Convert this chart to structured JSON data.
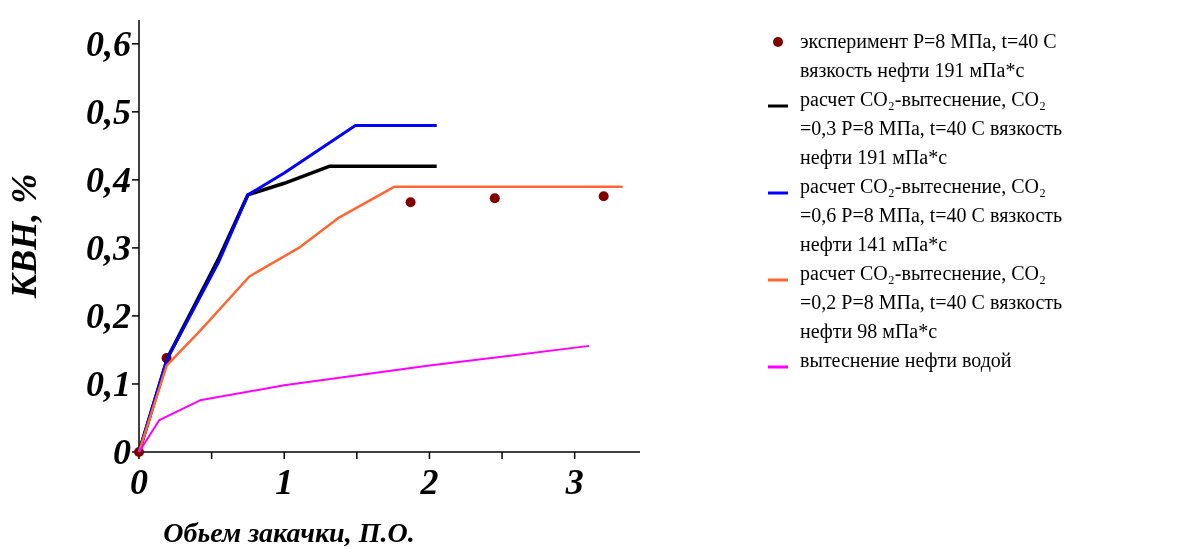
{
  "chart_data": {
    "type": "line",
    "xlabel": "Обьем закачки, П.О.",
    "ylabel": "КВН, %",
    "xlim": [
      0,
      3.45
    ],
    "ylim": [
      0,
      0.635
    ],
    "xticks": [
      0,
      {
        "value": 0.5,
        "label": null
      },
      1,
      {
        "value": 1.5,
        "label": null
      },
      2,
      {
        "value": 2.5,
        "label": null
      },
      3
    ],
    "yticks": [
      0,
      {
        "value": 0.1,
        "label": "0,1"
      },
      {
        "value": 0.2,
        "label": "0,2"
      },
      {
        "value": 0.3,
        "label": "0,3"
      },
      {
        "value": 0.4,
        "label": "0,4"
      },
      {
        "value": 0.5,
        "label": "0,5"
      },
      {
        "value": 0.6,
        "label": "0,6"
      }
    ],
    "grid": false,
    "legend": "right",
    "line_style": "solid",
    "series": [
      {
        "name": "эксперимент P=8 МПа, t=40 С вязкость нефти 191 мПа*с",
        "type": "scatter",
        "marker": "circle",
        "color": "#800000",
        "x": [
          0,
          0.19,
          1.87,
          2.45,
          3.2
        ],
        "values": [
          0,
          0.138,
          0.367,
          0.373,
          0.376
        ]
      },
      {
        "name": "расчет CO₂-вытеснение, CO₂ =0,3 P=8 МПа, t=40 С вязкость нефти 191 мПа*с",
        "color": "#000000",
        "x": [
          0,
          0.2,
          0.55,
          0.75,
          1.0,
          1.31,
          2.05
        ],
        "values": [
          0,
          0.14,
          0.285,
          0.378,
          0.395,
          0.42,
          0.42
        ]
      },
      {
        "name": "расчет CO₂-вытеснение, CO₂ =0,6 P=8 МПа, t=40 С вязкость нефти 141 мПа*с",
        "color": "#0000ff",
        "x": [
          0,
          0.19,
          0.55,
          0.75,
          1.0,
          1.49,
          2.05
        ],
        "values": [
          0,
          0.135,
          0.28,
          0.378,
          0.41,
          0.48,
          0.48
        ]
      },
      {
        "name": "расчет CO₂-вытеснение, CO₂ =0,2 P=8 МПа, t=40 С вязкость нефти 98 мПа*с",
        "color": "#ff6633",
        "x": [
          0,
          0.19,
          0.42,
          0.76,
          1.1,
          1.38,
          1.76,
          3.33
        ],
        "values": [
          0,
          0.127,
          0.178,
          0.258,
          0.3,
          0.345,
          0.39,
          0.39
        ]
      },
      {
        "name": "вытеснение нефти водой",
        "color": "#ff00ff",
        "x": [
          0,
          0.14,
          0.42,
          1.0,
          2.0,
          3.1
        ],
        "values": [
          0,
          0.047,
          0.076,
          0.098,
          0.127,
          0.156
        ]
      }
    ]
  }
}
